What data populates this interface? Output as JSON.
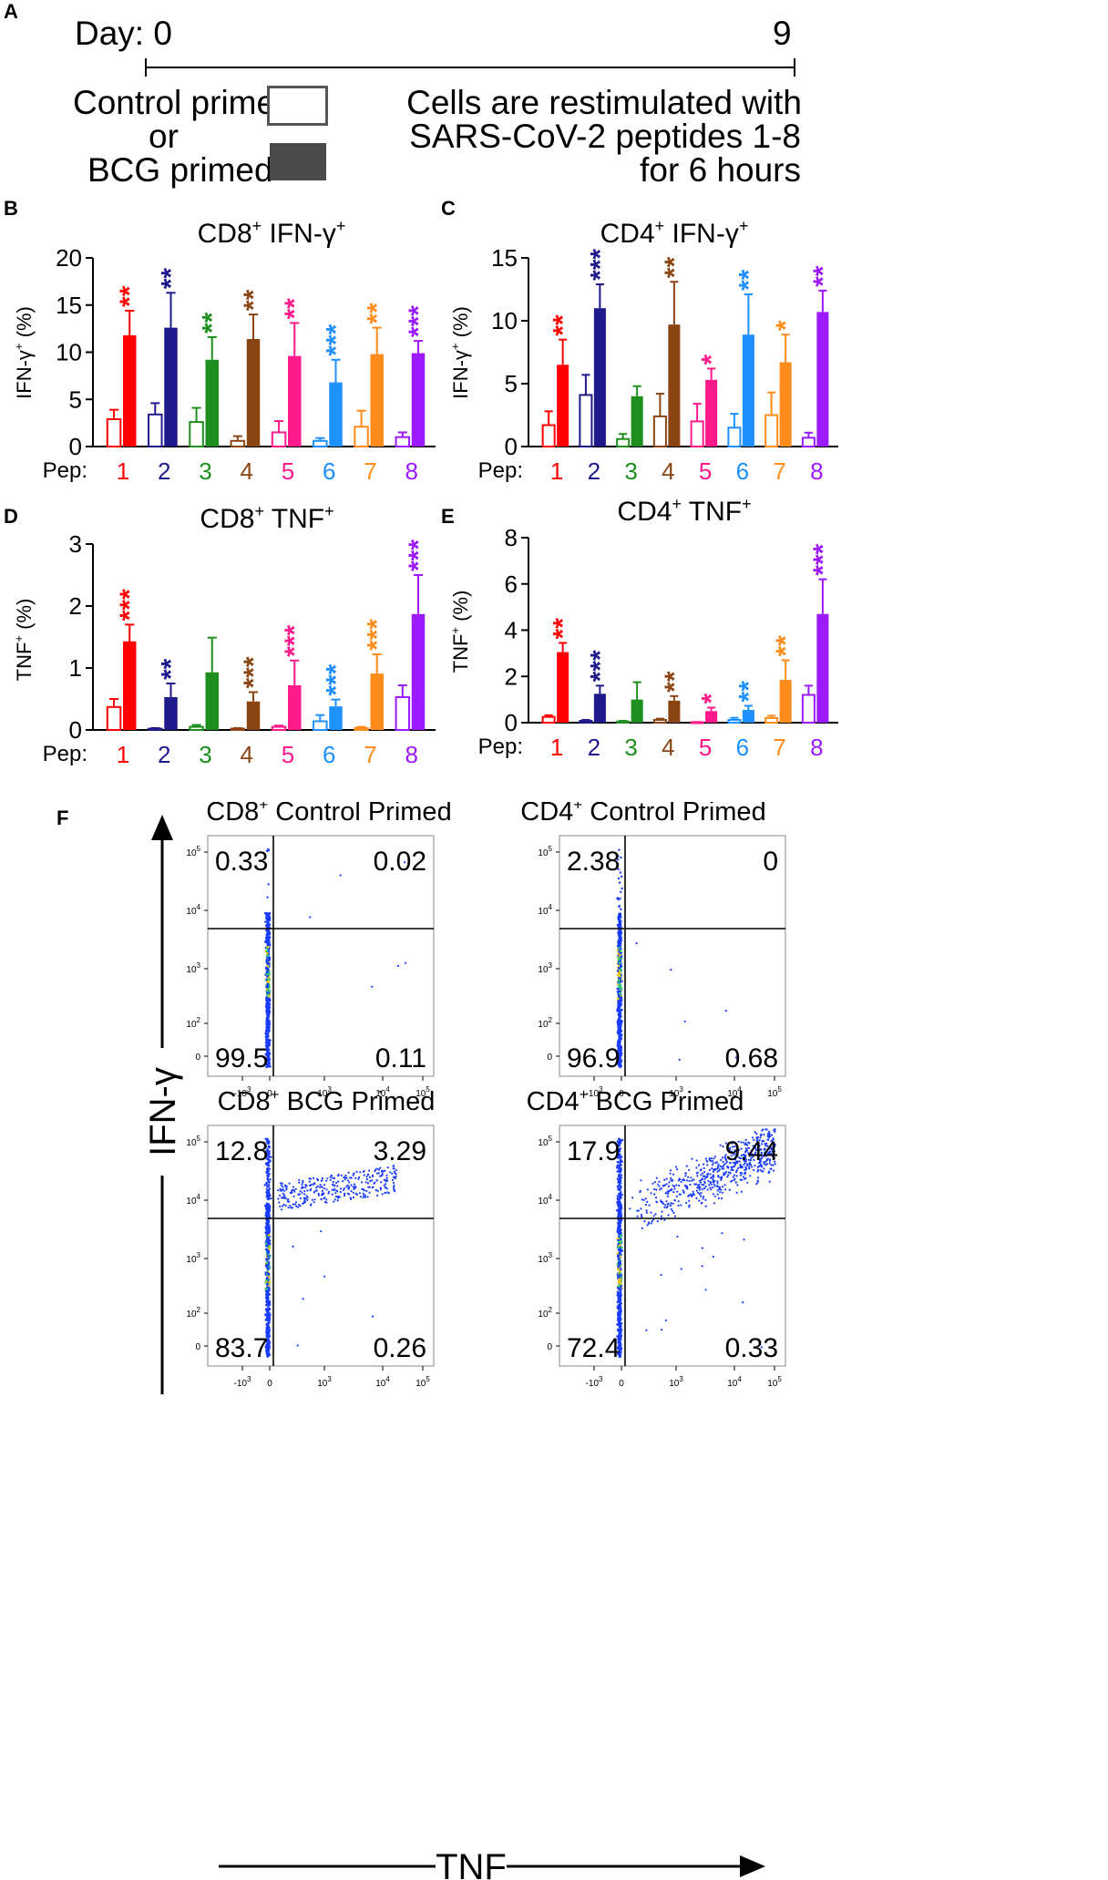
{
  "colors": {
    "red": "#ff0000",
    "navy": "#1f1a8c",
    "green": "#1e8f1e",
    "brown": "#8b4513",
    "pink": "#ff1a8c",
    "blue": "#1e90ff",
    "orange": "#ff8c1a",
    "purple": "#9b1aff",
    "black": "#000000",
    "box_fill": "#4a4a4a"
  },
  "panelA": {
    "label": "A",
    "day_text": "Day: 0",
    "day_end": "9",
    "control_text": "Control primed",
    "or_text": "or",
    "bcg_text": "BCG primed",
    "right_line1": "Cells are restimulated with",
    "right_line2": "SARS-CoV-2 peptides 1-8",
    "right_line3": "for 6 hours"
  },
  "chart_data": [
    {
      "panel": "B",
      "type": "bar",
      "title_main": "CD8",
      "title_sup1": "+",
      "title_rest": " IFN-γ",
      "title_sup2": "+",
      "ylabel_main": "IFN-γ",
      "ylabel_sup": "+",
      "ylabel_rest": " (%)",
      "xlabel": "Pep:",
      "categories": [
        "1",
        "2",
        "3",
        "4",
        "5",
        "6",
        "7",
        "8"
      ],
      "ylim": [
        0,
        20
      ],
      "yticks": [
        0,
        5,
        10,
        15,
        20
      ],
      "series": [
        {
          "name": "Control primed",
          "values": [
            2.9,
            3.4,
            2.6,
            0.6,
            1.5,
            0.6,
            2.1,
            1.0
          ],
          "errors": [
            1.0,
            1.2,
            1.5,
            0.5,
            1.2,
            0.3,
            1.7,
            0.5
          ]
        },
        {
          "name": "BCG primed",
          "values": [
            11.8,
            12.6,
            9.2,
            11.4,
            9.6,
            6.8,
            9.8,
            9.9
          ],
          "errors": [
            2.6,
            3.7,
            2.4,
            2.6,
            3.5,
            2.4,
            2.8,
            1.3
          ]
        }
      ],
      "significance": [
        "**",
        "**",
        "**",
        "**",
        "**",
        "***",
        "**",
        "***"
      ]
    },
    {
      "panel": "C",
      "type": "bar",
      "title_main": "CD4",
      "title_sup1": "+",
      "title_rest": " IFN-γ",
      "title_sup2": "+",
      "ylabel_main": "IFN-γ",
      "ylabel_sup": "+",
      "ylabel_rest": " (%)",
      "xlabel": "Pep:",
      "categories": [
        "1",
        "2",
        "3",
        "4",
        "5",
        "6",
        "7",
        "8"
      ],
      "ylim": [
        0,
        15
      ],
      "yticks": [
        0,
        5,
        10,
        15
      ],
      "series": [
        {
          "name": "Control primed",
          "values": [
            1.7,
            4.1,
            0.6,
            2.4,
            2.0,
            1.5,
            2.5,
            0.7
          ],
          "errors": [
            1.1,
            1.6,
            0.4,
            1.8,
            1.4,
            1.1,
            1.8,
            0.4
          ]
        },
        {
          "name": "BCG primed",
          "values": [
            6.5,
            11.0,
            4.0,
            9.7,
            5.3,
            8.9,
            6.7,
            10.7
          ],
          "errors": [
            2.0,
            1.9,
            0.8,
            3.4,
            0.9,
            3.2,
            2.2,
            1.7
          ]
        }
      ],
      "significance": [
        "**",
        "***",
        "",
        "**",
        "*",
        "**",
        "*",
        "**"
      ]
    },
    {
      "panel": "D",
      "type": "bar",
      "title_main": "CD8",
      "title_sup1": "+",
      "title_rest": " TNF",
      "title_sup2": "+",
      "ylabel_main": "TNF",
      "ylabel_sup": "+",
      "ylabel_rest": " (%)",
      "xlabel": "Pep:",
      "categories": [
        "1",
        "2",
        "3",
        "4",
        "5",
        "6",
        "7",
        "8"
      ],
      "ylim": [
        0,
        3
      ],
      "yticks": [
        0,
        1,
        2,
        3
      ],
      "series": [
        {
          "name": "Control primed",
          "values": [
            0.37,
            0.02,
            0.05,
            0.02,
            0.05,
            0.14,
            0.03,
            0.53
          ],
          "errors": [
            0.13,
            0.01,
            0.03,
            0.01,
            0.02,
            0.1,
            0.02,
            0.19
          ]
        },
        {
          "name": "BCG primed",
          "values": [
            1.43,
            0.53,
            0.93,
            0.46,
            0.72,
            0.38,
            0.91,
            1.87
          ],
          "errors": [
            0.27,
            0.22,
            0.56,
            0.15,
            0.4,
            0.11,
            0.31,
            0.63
          ]
        }
      ],
      "significance": [
        "***",
        "**",
        "",
        "***",
        "***",
        "***",
        "***",
        "***"
      ]
    },
    {
      "panel": "E",
      "type": "bar",
      "title_main": "CD4",
      "title_sup1": "+",
      "title_rest": " TNF",
      "title_sup2": "+",
      "ylabel_main": "TNF",
      "ylabel_sup": "+",
      "ylabel_rest": " (%)",
      "xlabel": "Pep:",
      "categories": [
        "1",
        "2",
        "3",
        "4",
        "5",
        "6",
        "7",
        "8"
      ],
      "ylim": [
        0,
        8
      ],
      "yticks": [
        0,
        2,
        4,
        6,
        8
      ],
      "series": [
        {
          "name": "Control primed",
          "values": [
            0.25,
            0.08,
            0.05,
            0.12,
            0.02,
            0.12,
            0.2,
            1.2
          ],
          "errors": [
            0.07,
            0.04,
            0.03,
            0.05,
            0.01,
            0.09,
            0.1,
            0.4
          ]
        },
        {
          "name": "BCG primed",
          "values": [
            3.05,
            1.25,
            1.0,
            0.95,
            0.5,
            0.55,
            1.85,
            4.7
          ],
          "errors": [
            0.4,
            0.35,
            0.75,
            0.2,
            0.15,
            0.18,
            0.85,
            1.5
          ]
        }
      ],
      "significance": [
        "**",
        "***",
        "",
        "**",
        "*",
        "**",
        "**",
        "***"
      ]
    },
    {
      "panel": "F",
      "type": "scatter",
      "y_axis_label": "IFN-γ",
      "x_axis_label": "TNF",
      "plots": [
        {
          "title_main": "CD8",
          "title_sup": "+",
          "title_rest": " Control Primed",
          "q_ul": "0.33",
          "q_ur": "0.02",
          "q_ll": "99.5",
          "q_lr": "0.11"
        },
        {
          "title_main": "CD4",
          "title_sup": "+",
          "title_rest": " Control Primed",
          "q_ul": "2.38",
          "q_ur": "0",
          "q_ll": "96.9",
          "q_lr": "0.68"
        },
        {
          "title_main": "CD8",
          "title_sup": "+",
          "title_rest": " BCG Primed",
          "q_ul": "12.8",
          "q_ur": "3.29",
          "q_ll": "83.7",
          "q_lr": "0.26"
        },
        {
          "title_main": "CD4",
          "title_sup": "+",
          "title_rest": " BCG Primed",
          "q_ul": "17.9",
          "q_ur": "9.44",
          "q_ll": "72.4",
          "q_lr": "0.33"
        }
      ],
      "y_ticks": [
        "10",
        "10",
        "10",
        "10",
        "0"
      ],
      "y_tick_exps": [
        "5",
        "4",
        "3",
        "2",
        ""
      ],
      "x_ticks": [
        "-10",
        "0",
        "10",
        "10",
        "10"
      ],
      "x_tick_exps": [
        "3",
        "",
        "3",
        "4",
        "5"
      ]
    }
  ]
}
